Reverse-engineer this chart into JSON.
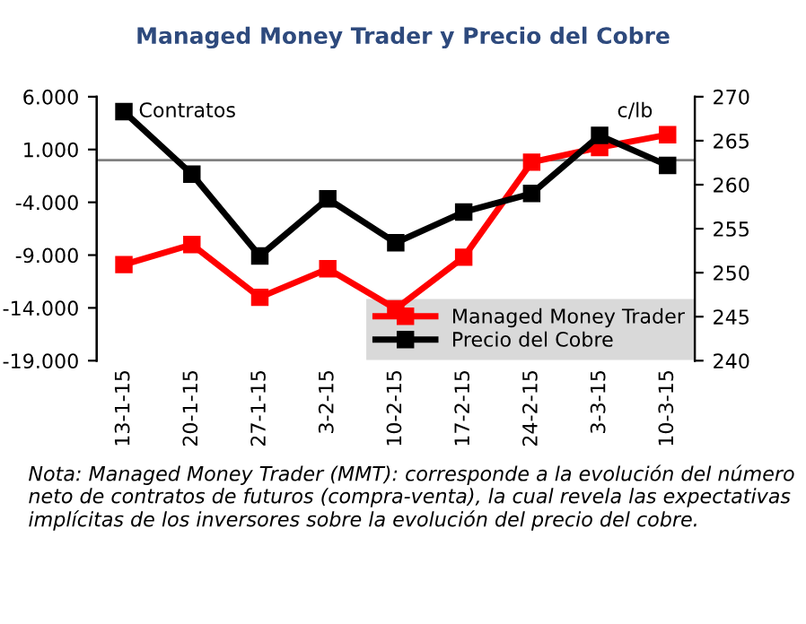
{
  "chart_data": {
    "type": "line",
    "title": "Managed Money Trader y Precio del Cobre",
    "ylabel": "Contratos",
    "y2label": "c/lb",
    "categories": [
      "13-1-15",
      "20-1-15",
      "27-1-15",
      "3-2-15",
      "10-2-15",
      "17-2-15",
      "24-2-15",
      "3-3-15",
      "10-3-15"
    ],
    "series": [
      {
        "name": "Managed Money Trader",
        "color": "#ff0000",
        "values": [
          -9900,
          -8000,
          -13000,
          -10300,
          -14100,
          -9200,
          -200,
          1200,
          2400
        ]
      },
      {
        "name": "Precio del Cobre",
        "color": "#000000",
        "axis": "y2",
        "values": [
          268.3,
          261.2,
          251.9,
          258.4,
          253.4,
          256.9,
          259.0,
          265.6,
          262.2
        ]
      }
    ],
    "ylim": [
      -19000,
      6000
    ],
    "yticks": [
      {
        "value": -19000,
        "label": "-19.000"
      },
      {
        "value": -14000,
        "label": "-14.000"
      },
      {
        "value": -9000,
        "label": "-9.000"
      },
      {
        "value": -4000,
        "label": "-4.000"
      },
      {
        "value": 1000,
        "label": "1.000"
      },
      {
        "value": 6000,
        "label": "6.000"
      }
    ],
    "y2lim": [
      240,
      270
    ],
    "y2ticks": [
      240,
      245,
      250,
      255,
      260,
      265,
      270
    ],
    "ref_lines": [
      {
        "axis": "y",
        "value": 0,
        "color": "#808080"
      }
    ],
    "marker": "square",
    "line_style": "solid",
    "grid": false,
    "legend": "bottom right",
    "annotations": [
      "Nota: Managed Money Trader (MMT): corresponde a la evolución del número neto de contratos de futuros (compra-venta), la cual revela las expectativas implícitas de los inversores sobre la evolución del precio del cobre."
    ]
  }
}
